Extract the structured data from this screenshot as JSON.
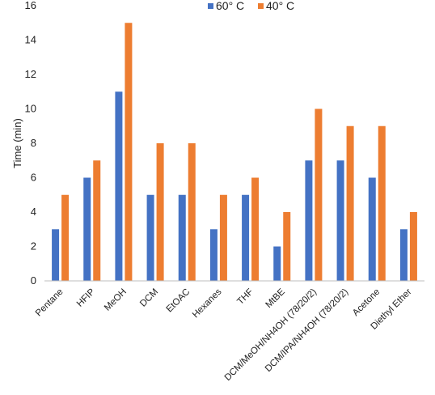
{
  "chart_data": {
    "type": "bar",
    "title": "",
    "xlabel": "",
    "ylabel": "Time (min)",
    "ylim": [
      0,
      16
    ],
    "yticks": [
      0,
      2,
      4,
      6,
      8,
      10,
      12,
      14,
      16
    ],
    "grid": false,
    "legend_position": "top-right",
    "categories": [
      "Pentane",
      "HFIP",
      "MeOH",
      "DCM",
      "EtOAC",
      "Hexanes",
      "THF",
      "MtBE",
      "DCM/MeOH/NH4OH (78/20/2)",
      "DCM/IPA/NH4OH (78/20/2)",
      "Acetone",
      "Diethyl Ether"
    ],
    "series": [
      {
        "name": "60° C",
        "color": "#4472C4",
        "values": [
          3,
          6,
          11,
          5,
          5,
          3,
          5,
          2,
          7,
          7,
          6,
          3
        ]
      },
      {
        "name": "40° C",
        "color": "#ED7D31",
        "values": [
          5,
          7,
          15,
          8,
          8,
          5,
          6,
          4,
          10,
          9,
          9,
          4
        ]
      }
    ]
  }
}
